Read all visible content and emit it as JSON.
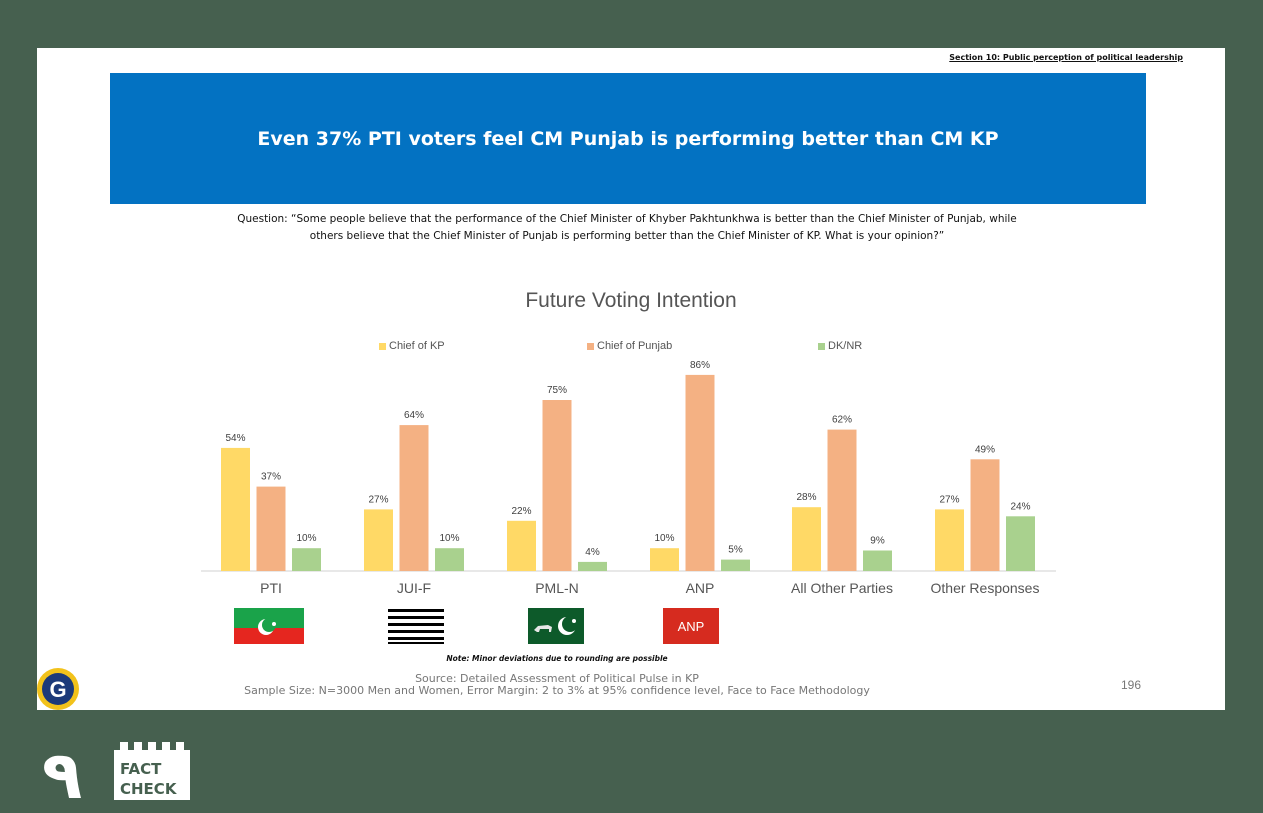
{
  "slide": {
    "section_header": "Section 10: Public perception of political leadership",
    "banner_title": "Even 37% PTI voters feel CM Punjab is performing better than CM KP",
    "question_line1": "Question: “Some people believe that the performance of the Chief Minister of Khyber Pakhtunkhwa is better than the Chief Minister of Punjab, while",
    "question_line2": "others believe that the Chief Minister of Punjab is performing better than the Chief Minister of KP. What is your opinion?”",
    "note": "Note: Minor deviations due to rounding are possible",
    "source": "Source: Detailed Assessment of Political Pulse in KP",
    "sample": "Sample Size: N=3000 Men and Women, Error Margin: 2 to 3% at 95% confidence level, Face to Face Methodology",
    "page_number": "196"
  },
  "flags": {
    "anp_label": "ANP"
  },
  "logo": {
    "badge_letter": "G",
    "brand_numeral": "٩",
    "fact": "FACT",
    "check": "CHECK"
  },
  "chart_data": {
    "type": "bar",
    "title": "Future Voting Intention",
    "categories": [
      "PTI",
      "JUI-F",
      "PML-N",
      "ANP",
      "All Other Parties",
      "Other Responses"
    ],
    "series": [
      {
        "name": "Chief of KP",
        "color": "#ffd966",
        "values": [
          54,
          27,
          22,
          10,
          28,
          27
        ]
      },
      {
        "name": "Chief of Punjab",
        "color": "#f4b183",
        "values": [
          37,
          64,
          75,
          86,
          62,
          49
        ]
      },
      {
        "name": "DK/NR",
        "color": "#a9d18e",
        "values": [
          10,
          10,
          4,
          5,
          9,
          24
        ]
      }
    ],
    "value_suffix": "%",
    "ylim": [
      0,
      100
    ],
    "legend_position": "top",
    "grid": false
  }
}
